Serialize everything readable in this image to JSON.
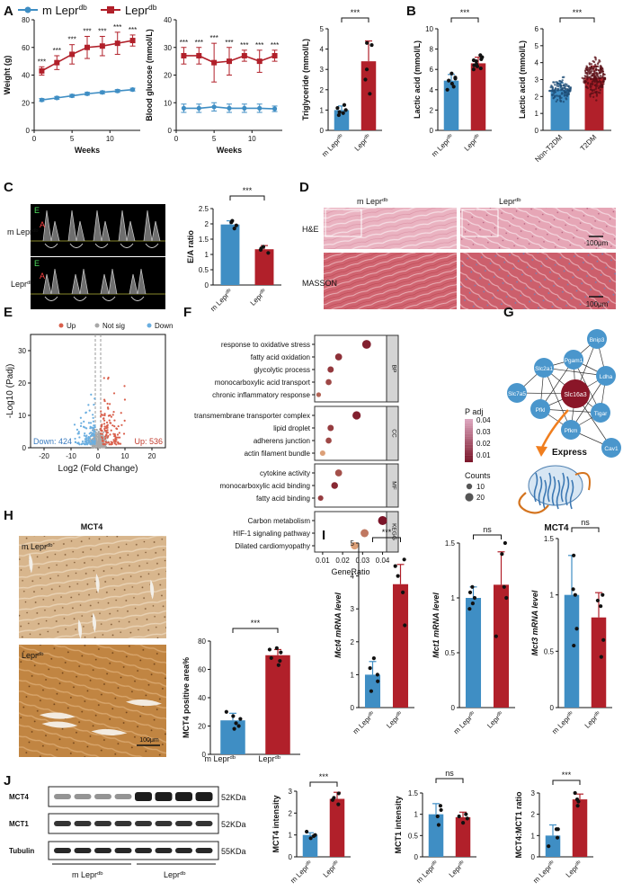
{
  "colors": {
    "control": "#3f8ec4",
    "disease": "#b1202a",
    "scatter_control": "#4a90c8",
    "up": "#d95f4b",
    "down": "#6aaee0",
    "notsig": "#a8a8a8",
    "network_node": "#4a96cc",
    "network_center": "#8a1628",
    "arrow": "#f07e1e",
    "he_stain": "#e7aab8",
    "masson_stain": "#c85a66",
    "ihc_light": "#c4a071",
    "ihc_dark": "#b57d3c"
  },
  "legend": {
    "control_main": "m Lepr",
    "disease_main": "Lepr",
    "sup": "db"
  },
  "groups": {
    "control_main": "m Lepr",
    "disease_main": "Lepr",
    "sup": "db",
    "non_t2dm": "Non-T2DM",
    "t2dm": "T2DM"
  },
  "panel_letters": [
    "A",
    "B",
    "C",
    "D",
    "E",
    "F",
    "G",
    "H",
    "I",
    "J"
  ],
  "sig": {
    "three": "***",
    "ns": "ns"
  },
  "chart_data": [
    {
      "id": "A1",
      "type": "line",
      "ylabel": "Weight (g)",
      "xlabel": "Weeks",
      "xlim": [
        0,
        14
      ],
      "ylim": [
        0,
        80
      ],
      "xticks": [
        0,
        5,
        10
      ],
      "yticks": [
        0,
        20,
        40,
        60,
        80
      ],
      "series": [
        {
          "name": "m Lepr db",
          "x": [
            1,
            3,
            5,
            7,
            9,
            11,
            13
          ],
          "y": [
            22,
            23.5,
            25,
            26.5,
            27.5,
            28.5,
            29.5
          ],
          "err": [
            1,
            1,
            1,
            1,
            1,
            1,
            1
          ]
        },
        {
          "name": "Lepr db",
          "x": [
            1,
            3,
            5,
            7,
            9,
            11,
            13
          ],
          "y": [
            43,
            49,
            55,
            60,
            61,
            63,
            65
          ],
          "err": [
            3,
            5,
            7,
            8,
            7,
            8,
            4
          ]
        }
      ],
      "annotations": [
        "***",
        "***",
        "***",
        "***",
        "***",
        "***",
        "***"
      ]
    },
    {
      "id": "A2",
      "type": "line",
      "ylabel": "Blood glucose (mmol/L)",
      "xlabel": "Weeks",
      "xlim": [
        0,
        14
      ],
      "ylim": [
        0,
        40
      ],
      "xticks": [
        0,
        5,
        10
      ],
      "yticks": [
        0,
        10,
        20,
        30,
        40
      ],
      "series": [
        {
          "name": "m Lepr db",
          "x": [
            1,
            3,
            5,
            7,
            9,
            11,
            13
          ],
          "y": [
            8,
            8,
            8.5,
            8,
            8,
            8,
            7.8
          ],
          "err": [
            1.5,
            1.5,
            1.5,
            1.5,
            1.5,
            1.5,
            1
          ]
        },
        {
          "name": "Lepr db",
          "x": [
            1,
            3,
            5,
            7,
            9,
            11,
            13
          ],
          "y": [
            27,
            27,
            24.5,
            25,
            27,
            25,
            27
          ],
          "err": [
            3,
            3,
            7,
            5,
            2,
            4,
            2
          ]
        }
      ],
      "annotations": [
        "***",
        "***",
        "***",
        "***",
        "***",
        "***",
        "***"
      ]
    },
    {
      "id": "A3",
      "type": "bar",
      "ylabel": "Triglyceride (mmol/L)",
      "categories": [
        "m Lepr db",
        "Lepr db"
      ],
      "values": [
        1.0,
        3.4
      ],
      "err": [
        0.2,
        1.0
      ],
      "points": [
        [
          0.85,
          1.0,
          0.9,
          1.1,
          0.75,
          1.25
        ],
        [
          2.5,
          3.0,
          4.2,
          4.3,
          1.8
        ]
      ],
      "ylim": [
        0,
        5
      ],
      "yticks": [
        0,
        1,
        2,
        3,
        4,
        5
      ],
      "annotation": "***"
    },
    {
      "id": "B1",
      "type": "bar",
      "ylabel": "Lactic acid (mmol/L)",
      "categories": [
        "m Lepr db",
        "Lepr db"
      ],
      "values": [
        4.9,
        6.6
      ],
      "err": [
        0.6,
        0.6
      ],
      "points": [
        [
          4.3,
          4.6,
          5.1,
          5.6,
          4.0,
          5.2,
          4.9
        ],
        [
          6.0,
          6.3,
          6.8,
          7.0,
          7.2,
          6.4,
          6.1,
          7.4,
          6.9,
          6.5
        ]
      ],
      "ylim": [
        0,
        10
      ],
      "yticks": [
        0,
        2,
        4,
        6,
        8,
        10
      ],
      "annotation": "***"
    },
    {
      "id": "B2",
      "type": "bar",
      "ylabel": "Lactic acid (mmol/L)",
      "categories": [
        "Non-T2DM",
        "T2DM"
      ],
      "values": [
        2.4,
        3.1
      ],
      "err": [
        0.4,
        0.7
      ],
      "ylim": [
        0,
        6
      ],
      "yticks": [
        0,
        1,
        2,
        3,
        4,
        5,
        6
      ],
      "annotation": "***"
    },
    {
      "id": "C",
      "type": "bar",
      "ylabel": "E/A ratio",
      "categories": [
        "m Lepr db",
        "Lepr db"
      ],
      "values": [
        1.98,
        1.17
      ],
      "err": [
        0.12,
        0.12
      ],
      "points": [
        [
          1.95,
          2.05,
          2.1,
          1.85
        ],
        [
          1.05,
          1.2,
          1.25,
          1.15
        ]
      ],
      "ylim": [
        0,
        2.5
      ],
      "yticks": [
        0.0,
        0.5,
        1.0,
        1.5,
        2.0,
        2.5
      ],
      "annotation": "***"
    },
    {
      "id": "E",
      "type": "scatter",
      "xlabel": "Log2 (Fold Change)",
      "ylabel": "-Log10 (Padj)",
      "xlim": [
        -25,
        25
      ],
      "ylim": [
        0,
        35
      ],
      "xticks": [
        -20,
        -10,
        0,
        10,
        20
      ],
      "yticks": [
        0,
        10,
        20,
        30
      ],
      "legend": [
        "Up",
        "Not sig",
        "Down"
      ],
      "down_label": "Down: 424",
      "up_label": "Up: 536"
    },
    {
      "id": "F",
      "type": "scatter",
      "xlabel": "GeneRatio",
      "xlim": [
        0.006,
        0.042
      ],
      "xticks": [
        0.01,
        0.02,
        0.03,
        0.04
      ],
      "groups": [
        "BP",
        "CC",
        "MF",
        "KEGG"
      ],
      "terms": [
        {
          "label": "response to oxidative stress",
          "group": "BP",
          "ratio": 0.032,
          "padj": 0.008,
          "count": 22
        },
        {
          "label": "fatty acid oxidation",
          "group": "BP",
          "ratio": 0.018,
          "padj": 0.012,
          "count": 15
        },
        {
          "label": "glycolytic process",
          "group": "BP",
          "ratio": 0.014,
          "padj": 0.014,
          "count": 12
        },
        {
          "label": "monocarboxylic acid transport",
          "group": "BP",
          "ratio": 0.013,
          "padj": 0.018,
          "count": 11
        },
        {
          "label": "chronic inflammatory response",
          "group": "BP",
          "ratio": 0.008,
          "padj": 0.025,
          "count": 6
        },
        {
          "label": "transmembrane transporter complex",
          "group": "CC",
          "ratio": 0.027,
          "padj": 0.008,
          "count": 20
        },
        {
          "label": "lipid droplet",
          "group": "CC",
          "ratio": 0.014,
          "padj": 0.015,
          "count": 12
        },
        {
          "label": "adherens junction",
          "group": "CC",
          "ratio": 0.013,
          "padj": 0.018,
          "count": 11
        },
        {
          "label": "actin filament bundle",
          "group": "CC",
          "ratio": 0.01,
          "padj": 0.04,
          "count": 9
        },
        {
          "label": "cytokine activity",
          "group": "MF",
          "ratio": 0.018,
          "padj": 0.02,
          "count": 15
        },
        {
          "label": "monocarboxylic acid binding",
          "group": "MF",
          "ratio": 0.016,
          "padj": 0.01,
          "count": 14
        },
        {
          "label": "fatty acid binding",
          "group": "MF",
          "ratio": 0.009,
          "padj": 0.015,
          "count": 9
        },
        {
          "label": "Carbon metabolism",
          "group": "KEGG",
          "ratio": 0.04,
          "padj": 0.005,
          "count": 23
        },
        {
          "label": "HIF-1 signaling pathway",
          "group": "KEGG",
          "ratio": 0.031,
          "padj": 0.03,
          "count": 19
        },
        {
          "label": "Dilated cardiomyopathy",
          "group": "KEGG",
          "ratio": 0.026,
          "padj": 0.04,
          "count": 17
        }
      ],
      "padj_legend_title": "P adj",
      "padj_ticks": [
        "0.04",
        "0.03",
        "0.02",
        "0.01"
      ],
      "counts_legend_title": "Counts",
      "counts_ticks": [
        "10",
        "20"
      ]
    },
    {
      "id": "H",
      "type": "bar",
      "ylabel": "MCT4 positive area%",
      "categories": [
        "m Lepr db",
        "Lepr db"
      ],
      "values": [
        24,
        70
      ],
      "err": [
        5,
        4
      ],
      "points": [
        [
          30,
          25,
          20,
          22,
          18,
          27
        ],
        [
          63,
          72,
          75,
          68,
          66,
          74
        ]
      ],
      "ylim": [
        0,
        80
      ],
      "yticks": [
        0,
        20,
        40,
        60,
        80
      ],
      "annotation": "***"
    },
    {
      "id": "I1",
      "type": "bar",
      "ylabel": "Mct4 mRNA level",
      "categories": [
        "m Lepr db",
        "Lepr db"
      ],
      "values": [
        1.0,
        3.75
      ],
      "err": [
        0.4,
        0.6
      ],
      "points": [
        [
          0.5,
          1.0,
          1.5,
          0.8,
          1.2
        ],
        [
          2.5,
          3.5,
          4.5,
          4.0,
          4.3
        ]
      ],
      "ylim": [
        0,
        5
      ],
      "yticks": [
        0,
        1,
        2,
        3,
        4,
        5
      ],
      "annotation": "***"
    },
    {
      "id": "I2",
      "type": "bar",
      "ylabel": "Mct1 mRNA level",
      "categories": [
        "m Lepr db",
        "Lepr db"
      ],
      "values": [
        1.0,
        1.12
      ],
      "err": [
        0.1,
        0.3
      ],
      "points": [
        [
          0.95,
          1.0,
          1.05,
          1.1,
          0.9
        ],
        [
          0.65,
          1.1,
          1.4,
          1.5,
          1.0
        ]
      ],
      "ylim": [
        0,
        1.5
      ],
      "yticks": [
        0.0,
        0.5,
        1.0,
        1.5
      ],
      "annotation": "ns"
    },
    {
      "id": "I3",
      "type": "bar",
      "ylabel": "Mct3 mRNA level",
      "categories": [
        "m Lepr db",
        "Lepr db"
      ],
      "values": [
        1.0,
        0.8
      ],
      "err": [
        0.35,
        0.22
      ],
      "points": [
        [
          1.35,
          1.05,
          0.7,
          0.55,
          1.0
        ],
        [
          0.95,
          0.6,
          0.45,
          0.9,
          1.0
        ]
      ],
      "ylim": [
        0,
        1.5
      ],
      "yticks": [
        0.0,
        0.5,
        1.0,
        1.5
      ],
      "annotation": "ns"
    },
    {
      "id": "J1",
      "type": "bar",
      "ylabel": "MCT4 intensity",
      "categories": [
        "m Lepr db",
        "Lepr db"
      ],
      "values": [
        1.0,
        2.65
      ],
      "err": [
        0.1,
        0.3
      ],
      "points": [
        [
          0.95,
          1.0,
          1.15,
          0.85
        ],
        [
          2.4,
          2.9,
          2.6,
          2.7
        ]
      ],
      "ylim": [
        0,
        3
      ],
      "yticks": [
        0,
        1,
        2,
        3
      ],
      "annotation": "***"
    },
    {
      "id": "J2",
      "type": "bar",
      "ylabel": "MCT1 intensity",
      "categories": [
        "m Lepr db",
        "Lepr db"
      ],
      "values": [
        1.0,
        0.93
      ],
      "err": [
        0.25,
        0.12
      ],
      "points": [
        [
          1.2,
          0.95,
          0.75,
          1.1
        ],
        [
          0.8,
          1.0,
          0.95,
          0.9
        ]
      ],
      "ylim": [
        0,
        1.5
      ],
      "yticks": [
        0.0,
        0.5,
        1.0,
        1.5
      ],
      "annotation": "ns"
    },
    {
      "id": "J3",
      "type": "bar",
      "ylabel": "MCT4:MCT1 ratio",
      "categories": [
        "m Lepr db",
        "Lepr db"
      ],
      "values": [
        1.0,
        2.7
      ],
      "err": [
        0.5,
        0.25
      ],
      "points": [
        [
          0.5,
          1.3,
          0.9,
          1.3
        ],
        [
          2.4,
          3.0,
          2.7,
          2.6
        ]
      ],
      "ylim": [
        0,
        3
      ],
      "yticks": [
        0,
        1,
        2,
        3
      ],
      "annotation": "***"
    }
  ],
  "panel_c": {
    "label_e": "E",
    "label_a": "A"
  },
  "panel_d": {
    "col1": "m Lepr",
    "col2": "Lepr",
    "sup": "db",
    "row1": "H&E",
    "row2": "MASSON",
    "scale": "100μm"
  },
  "panel_g": {
    "center": "Slc16a3",
    "nodes": [
      "Bnip3",
      "Pgam1",
      "Slc2a1",
      "Ldha",
      "Slc7a5",
      "Pfkl",
      "Tigar",
      "Pfkm",
      "Cav1"
    ],
    "arrow_label": "Express",
    "protein_label": "MCT4"
  },
  "panel_h": {
    "title": "MCT4",
    "scale": "100μm"
  },
  "panel_j": {
    "rows": [
      "MCT4",
      "MCT1",
      "Tubulin"
    ],
    "sizes": [
      "52KDa",
      "52KDa",
      "55KDa"
    ]
  }
}
